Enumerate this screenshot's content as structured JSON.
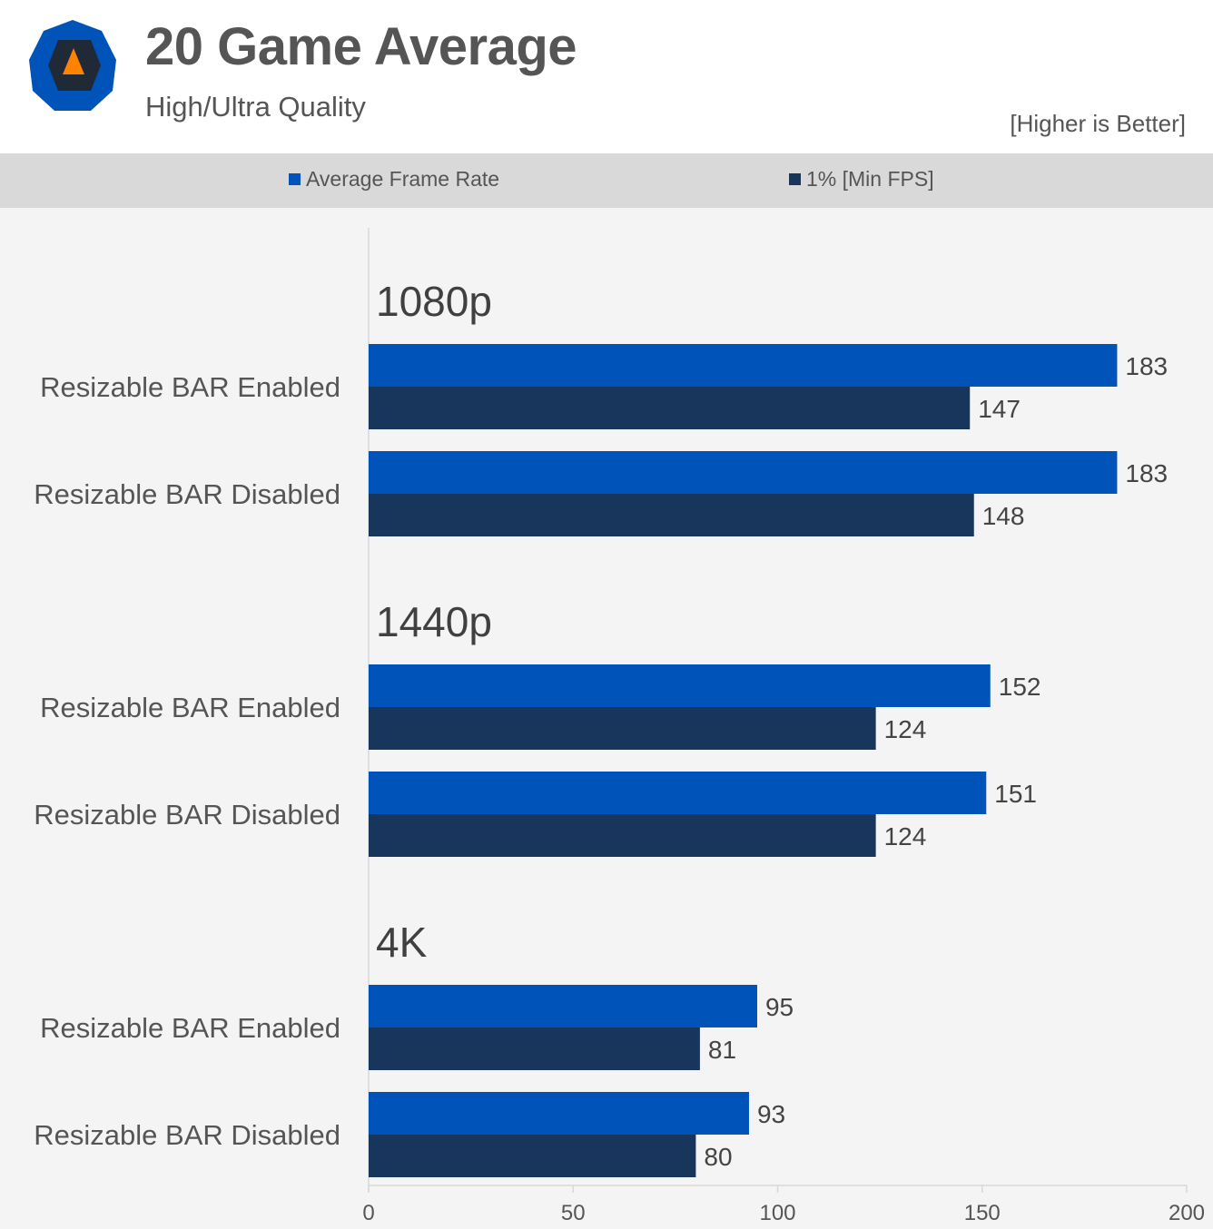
{
  "header": {
    "title": "20 Game Average",
    "subtitle": "High/Ultra Quality",
    "note": "[Higher is Better]",
    "logo_icon": "techspot-logo-icon"
  },
  "colors": {
    "avg": "#0053b8",
    "min": "#18355c",
    "logo_outer": "#0053b8",
    "logo_inner": "#1f2a36",
    "logo_triangle": "#ff8200",
    "axis": "#d8d8d8",
    "plot_bg": "#f4f4f4",
    "legend_bg": "#d9d9d9"
  },
  "chart_data": {
    "type": "bar",
    "orientation": "horizontal",
    "title": "20 Game Average",
    "subtitle": "High/Ultra Quality",
    "annotation": "[Higher is Better]",
    "legend": [
      "Average Frame Rate",
      "1% [Min FPS]"
    ],
    "legend_position": "top",
    "xlabel": "",
    "ylabel": "",
    "xlim": [
      0,
      200
    ],
    "xticks": [
      0,
      50,
      100,
      150,
      200
    ],
    "grid": false,
    "groups": [
      {
        "name": "1080p",
        "categories": [
          "Resizable BAR Enabled",
          "Resizable BAR Disabled"
        ],
        "series": [
          {
            "name": "Average Frame Rate",
            "values": [
              183,
              183
            ]
          },
          {
            "name": "1% [Min FPS]",
            "values": [
              147,
              148
            ]
          }
        ]
      },
      {
        "name": "1440p",
        "categories": [
          "Resizable BAR Enabled",
          "Resizable BAR Disabled"
        ],
        "series": [
          {
            "name": "Average Frame Rate",
            "values": [
              152,
              151
            ]
          },
          {
            "name": "1% [Min FPS]",
            "values": [
              124,
              124
            ]
          }
        ]
      },
      {
        "name": "4K",
        "categories": [
          "Resizable BAR Enabled",
          "Resizable BAR Disabled"
        ],
        "series": [
          {
            "name": "Average Frame Rate",
            "values": [
              95,
              93
            ]
          },
          {
            "name": "1% [Min FPS]",
            "values": [
              81,
              80
            ]
          }
        ]
      }
    ]
  }
}
